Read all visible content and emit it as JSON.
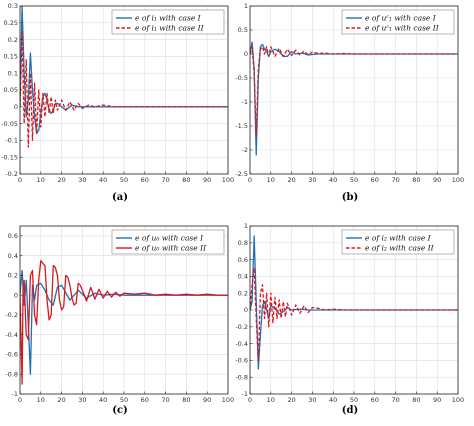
{
  "colors": {
    "blue": "#1f6fb4",
    "red": "#d7191c",
    "grid": "#dcdcdc",
    "frame": "#222222"
  },
  "chart_data": [
    {
      "type": "line",
      "caption": "(a)",
      "xlim": [
        0,
        100
      ],
      "ylim": [
        -0.2,
        0.3
      ],
      "xticks": [
        0,
        10,
        20,
        30,
        40,
        50,
        60,
        70,
        80,
        90,
        100
      ],
      "yticks": [
        -0.2,
        -0.15,
        -0.1,
        -0.05,
        0,
        0.05,
        0.1,
        0.15,
        0.2,
        0.25,
        0.3
      ],
      "ytick_labels": [
        "-0.2",
        "-0.15",
        "-0.1",
        "-0.05",
        "0",
        "0.05",
        "0.1",
        "0.15",
        "0.2",
        "0.25",
        "0.3"
      ],
      "grid": true,
      "legend": "top-right",
      "series": [
        {
          "name": "e of i₁ with case I",
          "style": "solid",
          "color": "blue",
          "x": [
            0,
            1,
            2,
            3,
            4,
            5,
            6,
            7,
            8,
            9,
            10,
            11,
            12,
            13,
            14,
            15,
            16,
            17,
            18,
            20,
            22,
            25,
            28,
            31,
            35,
            40,
            45,
            50,
            60,
            70,
            80,
            90,
            100
          ],
          "y": [
            0,
            0.3,
            0.1,
            -0.03,
            0.02,
            0.16,
            0.05,
            -0.03,
            -0.08,
            -0.07,
            -0.02,
            0.03,
            0.04,
            0.02,
            -0.01,
            -0.02,
            -0.01,
            0.01,
            0.01,
            0,
            -0.01,
            0.005,
            0,
            0,
            0,
            0,
            0,
            0,
            0,
            0,
            0,
            0,
            0
          ]
        },
        {
          "name": "e of i₁ with case II",
          "style": "dashed",
          "color": "red",
          "x": [
            0,
            1,
            2,
            3,
            4,
            5,
            6,
            7,
            8,
            9,
            10,
            11,
            12,
            13,
            14,
            15,
            16,
            17,
            18,
            20,
            22,
            24,
            26,
            28,
            30,
            33,
            36,
            40,
            45,
            50,
            60,
            70,
            80,
            90,
            100
          ],
          "y": [
            0,
            0.22,
            -0.05,
            0.14,
            -0.12,
            0.1,
            -0.1,
            0.07,
            -0.08,
            0.05,
            -0.06,
            0.04,
            -0.03,
            0.04,
            -0.02,
            0.03,
            -0.02,
            0.02,
            -0.01,
            0.02,
            -0.01,
            0.015,
            -0.01,
            0.01,
            -0.005,
            0.005,
            0,
            0.005,
            0,
            0,
            0,
            0,
            0,
            0,
            0
          ]
        }
      ]
    },
    {
      "type": "line",
      "caption": "(b)",
      "xlim": [
        0,
        100
      ],
      "ylim": [
        -2.5,
        1
      ],
      "xticks": [
        0,
        10,
        20,
        30,
        40,
        50,
        60,
        70,
        80,
        90,
        100
      ],
      "yticks": [
        -2.5,
        -2,
        -1.5,
        -1,
        -0.5,
        0,
        0.5,
        1
      ],
      "ytick_labels": [
        "-2.5",
        "-2",
        "-1.5",
        "-1",
        "-0.5",
        "0",
        "0.5",
        "1"
      ],
      "grid": true,
      "legend": "top-right",
      "series": [
        {
          "name": "e of uᶜ₁ with case I",
          "style": "solid",
          "color": "blue",
          "x": [
            0,
            1,
            2,
            3,
            4,
            5,
            6,
            7,
            8,
            9,
            10,
            12,
            14,
            16,
            18,
            20,
            22,
            25,
            28,
            32,
            36,
            40,
            50,
            60,
            70,
            80,
            90,
            100
          ],
          "y": [
            0,
            0.25,
            -0.3,
            -2.1,
            -0.5,
            0.15,
            0.2,
            0.1,
            0.05,
            -0.05,
            0.05,
            0.1,
            0.05,
            -0.05,
            -0.05,
            0.05,
            0,
            0.02,
            -0.02,
            0,
            0,
            0,
            0,
            0,
            0,
            0,
            0,
            0
          ]
        },
        {
          "name": "e of uᶜ₁ with case II",
          "style": "dashed",
          "color": "red",
          "x": [
            0,
            1,
            2,
            3,
            4,
            5,
            6,
            7,
            8,
            9,
            10,
            12,
            14,
            16,
            18,
            20,
            22,
            24,
            26,
            28,
            30,
            33,
            36,
            40,
            45,
            50,
            60,
            70,
            80,
            90,
            100
          ],
          "y": [
            0,
            0.15,
            -0.4,
            -1.7,
            -0.3,
            0.1,
            0.15,
            0,
            0.15,
            -0.05,
            0.15,
            -0.05,
            0.12,
            -0.05,
            0.1,
            -0.03,
            0.08,
            -0.02,
            0.06,
            -0.02,
            0.04,
            0.01,
            0.02,
            0,
            0.01,
            0,
            0,
            0,
            0,
            0,
            0
          ]
        }
      ]
    },
    {
      "type": "line",
      "caption": "(c)",
      "xlim": [
        0,
        100
      ],
      "ylim": [
        -1,
        0.7
      ],
      "xticks": [
        0,
        10,
        20,
        30,
        40,
        50,
        60,
        70,
        80,
        90,
        100
      ],
      "yticks": [
        -1,
        -0.8,
        -0.6,
        -0.4,
        -0.2,
        0,
        0.2,
        0.4,
        0.6
      ],
      "ytick_labels": [
        "-1",
        "-0.8",
        "-0.6",
        "-0.4",
        "-0.2",
        "0",
        "0.2",
        "0.4",
        "0.6"
      ],
      "grid": true,
      "legend": "top-right",
      "series": [
        {
          "name": "e of u₀ with case I",
          "style": "solid",
          "color": "blue",
          "x": [
            0,
            1,
            2,
            3,
            4,
            5,
            6,
            7,
            8,
            10,
            12,
            14,
            16,
            18,
            20,
            24,
            28,
            32,
            36,
            40,
            45,
            50,
            60,
            70,
            80,
            90,
            100
          ],
          "y": [
            0,
            0.25,
            -0.1,
            0.15,
            -0.3,
            -0.8,
            0.1,
            -0.05,
            0.1,
            0.12,
            0.05,
            -0.05,
            -0.1,
            0.08,
            0.1,
            -0.05,
            0.05,
            -0.03,
            0.02,
            0,
            0.01,
            0,
            0,
            0,
            0,
            0,
            0
          ]
        },
        {
          "name": "e of u₀ with case II",
          "style": "solid",
          "color": "red",
          "x": [
            0,
            1,
            1.5,
            2,
            3,
            4,
            5,
            6,
            7,
            8,
            9,
            10,
            11,
            12,
            13,
            14,
            15,
            16,
            17,
            18,
            19,
            20,
            21,
            22,
            23,
            24,
            25,
            26,
            27,
            28,
            29,
            30,
            32,
            34,
            36,
            38,
            40,
            42,
            44,
            46,
            48,
            50,
            55,
            60,
            65,
            70,
            75,
            80,
            85,
            90,
            95,
            100
          ],
          "y": [
            0,
            -0.9,
            0.1,
            0.15,
            -0.4,
            -0.45,
            0.2,
            0.25,
            -0.2,
            -0.3,
            0.15,
            0.35,
            0.32,
            0.3,
            -0.05,
            -0.25,
            -0.2,
            0.3,
            0.28,
            0.2,
            -0.05,
            -0.15,
            -0.12,
            0.2,
            0.18,
            0.1,
            -0.03,
            -0.1,
            -0.08,
            0.12,
            0.1,
            0.05,
            -0.06,
            0.08,
            -0.04,
            0.06,
            -0.03,
            0.04,
            -0.02,
            0.03,
            -0.01,
            0.02,
            0.01,
            0.02,
            0,
            0.01,
            0,
            0.01,
            0,
            0.01,
            0,
            0
          ]
        }
      ]
    },
    {
      "type": "line",
      "caption": "(d)",
      "xlim": [
        0,
        100
      ],
      "ylim": [
        -1,
        1
      ],
      "xticks": [
        0,
        10,
        20,
        30,
        40,
        50,
        60,
        70,
        80,
        90,
        100
      ],
      "yticks": [
        -1,
        -0.8,
        -0.6,
        -0.4,
        -0.2,
        0,
        0.2,
        0.4,
        0.6,
        0.8,
        1
      ],
      "ytick_labels": [
        "-1",
        "-0.8",
        "-0.6",
        "-0.4",
        "-0.2",
        "0",
        "0.2",
        "0.4",
        "0.6",
        "0.8",
        "1"
      ],
      "grid": true,
      "legend": "top-right",
      "series": [
        {
          "name": "e of i₂ with case I",
          "style": "solid",
          "color": "blue",
          "x": [
            0,
            1,
            2,
            3,
            4,
            5,
            6,
            7,
            8,
            9,
            10,
            12,
            14,
            16,
            18,
            20,
            24,
            28,
            32,
            36,
            40,
            50,
            60,
            70,
            80,
            90,
            100
          ],
          "y": [
            0,
            0.1,
            0.88,
            0.1,
            -0.7,
            -0.3,
            0.05,
            0.1,
            0,
            -0.1,
            0.05,
            0.02,
            -0.05,
            -0.02,
            0.03,
            0,
            0.01,
            0,
            0,
            0,
            0,
            0,
            0,
            0,
            0,
            0,
            0
          ]
        },
        {
          "name": "e of i₂ with case II",
          "style": "dashed",
          "color": "red",
          "x": [
            0,
            1,
            2,
            3,
            4,
            5,
            6,
            7,
            8,
            9,
            10,
            11,
            12,
            13,
            14,
            15,
            16,
            17,
            18,
            20,
            22,
            24,
            26,
            28,
            30,
            33,
            36,
            40,
            45,
            50,
            60,
            70,
            80,
            90,
            100
          ],
          "y": [
            0,
            0.3,
            0.5,
            -0.1,
            -0.6,
            0.2,
            0.3,
            -0.1,
            0.2,
            -0.2,
            0.2,
            -0.15,
            0.15,
            -0.1,
            0.12,
            -0.1,
            0.1,
            -0.08,
            0.08,
            -0.06,
            0.06,
            -0.04,
            0.05,
            -0.03,
            0.03,
            0.02,
            0,
            0.01,
            0,
            0,
            0,
            0,
            0,
            0,
            0
          ]
        }
      ]
    }
  ]
}
